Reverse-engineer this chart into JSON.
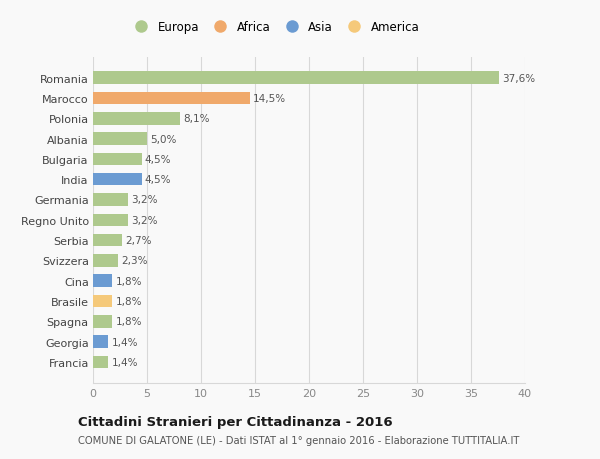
{
  "categories": [
    "Francia",
    "Georgia",
    "Spagna",
    "Brasile",
    "Cina",
    "Svizzera",
    "Serbia",
    "Regno Unito",
    "Germania",
    "India",
    "Bulgaria",
    "Albania",
    "Polonia",
    "Marocco",
    "Romania"
  ],
  "values": [
    1.4,
    1.4,
    1.8,
    1.8,
    1.8,
    2.3,
    2.7,
    3.2,
    3.2,
    4.5,
    4.5,
    5.0,
    8.1,
    14.5,
    37.6
  ],
  "labels": [
    "1,4%",
    "1,4%",
    "1,8%",
    "1,8%",
    "1,8%",
    "2,3%",
    "2,7%",
    "3,2%",
    "3,2%",
    "4,5%",
    "4,5%",
    "5,0%",
    "8,1%",
    "14,5%",
    "37,6%"
  ],
  "colors": [
    "#aec98d",
    "#6b9bd2",
    "#aec98d",
    "#f5c97a",
    "#6b9bd2",
    "#aec98d",
    "#aec98d",
    "#aec98d",
    "#aec98d",
    "#6b9bd2",
    "#aec98d",
    "#aec98d",
    "#aec98d",
    "#f0a96b",
    "#aec98d"
  ],
  "legend_labels": [
    "Europa",
    "Africa",
    "Asia",
    "America"
  ],
  "legend_colors": [
    "#aec98d",
    "#f0a96b",
    "#6b9bd2",
    "#f5c97a"
  ],
  "title": "Cittadini Stranieri per Cittadinanza - 2016",
  "subtitle": "COMUNE DI GALATONE (LE) - Dati ISTAT al 1° gennaio 2016 - Elaborazione TUTTITALIA.IT",
  "xlim": [
    0,
    40
  ],
  "xticks": [
    0,
    5,
    10,
    15,
    20,
    25,
    30,
    35,
    40
  ],
  "background_color": "#f9f9f9",
  "grid_color": "#d8d8d8"
}
